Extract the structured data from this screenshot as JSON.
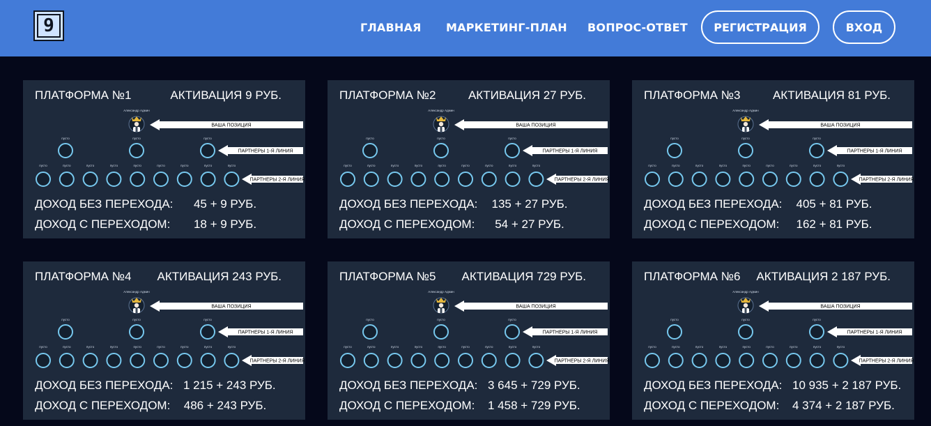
{
  "header": {
    "logo_text": "9",
    "nav": [
      "ГЛАВНАЯ",
      "МАРКЕТИНГ-ПЛАН",
      "ВОПРОС-ОТВЕТ"
    ],
    "register_label": "РЕГИСТРАЦИЯ",
    "login_label": "ВХОД",
    "bg_color": "#437bd8"
  },
  "diagram_labels": {
    "owner": "Александр Админ",
    "empty": "пусто",
    "your_position": "ВАША ПОЗИЦИЯ",
    "line1": "ПАРТНЕРЫ 1-Я ЛИНИЯ",
    "line2": "ПАРТНЕРЫ 2-Я ЛИНИЯ"
  },
  "income_labels": {
    "no_transition": "ДОХОД БЕЗ ПЕРЕХОДА:",
    "with_transition": "ДОХОД С ПЕРЕХОДОМ:"
  },
  "platforms": [
    {
      "name": "ПЛАТФОРМА №1",
      "activation": "АКТИВАЦИЯ 9 РУБ.",
      "income_no_transition": "45 + 9 РУБ.",
      "income_with_transition": "18 + 9 РУБ."
    },
    {
      "name": "ПЛАТФОРМА №2",
      "activation": "АКТИВАЦИЯ 27 РУБ.",
      "income_no_transition": "135 + 27 РУБ.",
      "income_with_transition": "54 + 27 РУБ."
    },
    {
      "name": "ПЛАТФОРМА №3",
      "activation": "АКТИВАЦИЯ 81 РУБ.",
      "income_no_transition": "405 + 81 РУБ.",
      "income_with_transition": "162 + 81 РУБ."
    },
    {
      "name": "ПЛАТФОРМА №4",
      "activation": "АКТИВАЦИЯ 243 РУБ.",
      "income_no_transition": "1 215 + 243 РУБ.",
      "income_with_transition": "486 + 243 РУБ."
    },
    {
      "name": "ПЛАТФОРМА №5",
      "activation": "АКТИВАЦИЯ 729 РУБ.",
      "income_no_transition": "3 645 + 729 РУБ.",
      "income_with_transition": "1 458 + 729 РУБ."
    },
    {
      "name": "ПЛАТФОРМА №6",
      "activation": "АКТИВАЦИЯ 2 187 РУБ.",
      "income_no_transition": "10 935 + 2 187 РУБ.",
      "income_with_transition": "4 374 + 2 187 РУБ."
    }
  ]
}
